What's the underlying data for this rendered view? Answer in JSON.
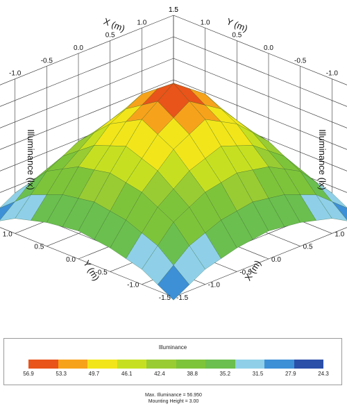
{
  "chart_data": {
    "type": "surface",
    "title": "",
    "axes": {
      "x_label": "X (m)",
      "y_label": "Y (m)",
      "z_label": "Illuminance (lx)",
      "x_ticks": [
        "-1.5",
        "-1.0",
        "-0.5",
        "0.0",
        "0.5",
        "1.0",
        "1.5"
      ],
      "y_ticks": [
        "-1.5",
        "-1.0",
        "-0.5",
        "0.0",
        "0.5",
        "1.0",
        "1.5"
      ],
      "z_ticks": [
        "25",
        "30",
        "35",
        "40",
        "45",
        "50",
        "55"
      ],
      "x_range": [
        -1.5,
        1.5
      ],
      "y_range": [
        -1.5,
        1.5
      ],
      "z_range": [
        25,
        55
      ]
    },
    "grid": true,
    "x": [
      -1.5,
      -1.0,
      -0.5,
      0.0,
      0.5,
      1.0,
      1.5
    ],
    "y": [
      -1.5,
      -1.0,
      -0.5,
      0.0,
      0.5,
      1.0,
      1.5
    ],
    "z": [
      [
        24.3,
        28.5,
        30.5,
        31.5,
        30.5,
        28.5,
        24.3
      ],
      [
        28.5,
        36.5,
        40.5,
        42.0,
        40.5,
        36.5,
        28.5
      ],
      [
        30.5,
        40.5,
        47.5,
        51.5,
        47.5,
        40.5,
        30.5
      ],
      [
        31.5,
        42.0,
        51.5,
        56.95,
        51.5,
        42.0,
        31.5
      ],
      [
        30.5,
        40.5,
        47.5,
        51.5,
        47.5,
        40.5,
        30.5
      ],
      [
        28.5,
        36.5,
        40.5,
        42.0,
        40.5,
        36.5,
        28.5
      ],
      [
        24.3,
        28.5,
        30.5,
        31.5,
        30.5,
        28.5,
        24.3
      ]
    ],
    "legend": {
      "title": "Illuminance",
      "labels": [
        "56.9",
        "53.3",
        "49.7",
        "46.1",
        "42.4",
        "38.8",
        "35.2",
        "31.5",
        "27.9",
        "24.3"
      ],
      "colors": [
        "#e8541a",
        "#f7a21b",
        "#f2e51a",
        "#c6e021",
        "#99cc33",
        "#7ec43a",
        "#6bbf4e",
        "#8fd0e8",
        "#3d8fd6",
        "#2a4fa8"
      ]
    }
  },
  "footer": {
    "max_illuminance": "Max. Illuminance = 56.950",
    "mounting_height": "Mounting Height = 3.00"
  }
}
